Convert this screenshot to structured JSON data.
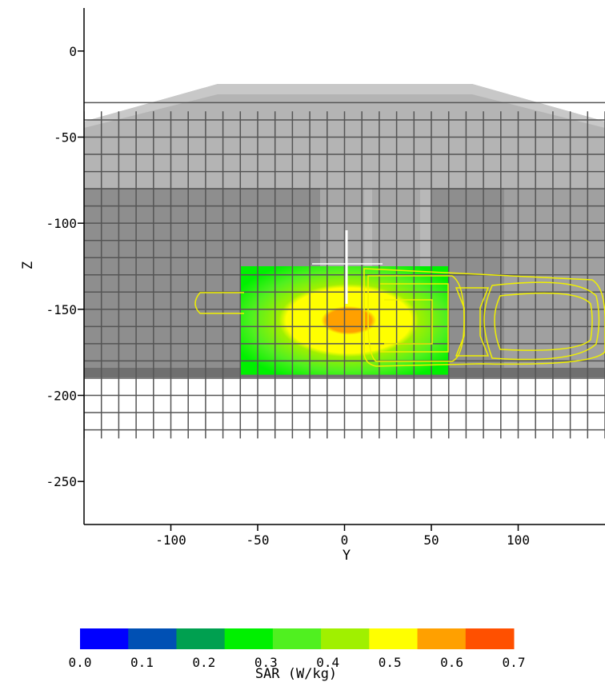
{
  "chart_data": {
    "type": "heatmap",
    "xlabel": "Y",
    "ylabel": "Z",
    "xlim": [
      -150,
      150
    ],
    "ylim": [
      -275,
      25
    ],
    "x_ticks": [
      "-100",
      "-50",
      "0",
      "50",
      "100"
    ],
    "x_tick_values": [
      -100,
      -50,
      0,
      50,
      100
    ],
    "y_ticks": [
      "0",
      "-50",
      "-100",
      "-150",
      "-200",
      "-250"
    ],
    "y_tick_values": [
      0,
      -50,
      -100,
      -150,
      -200,
      -250
    ],
    "sar_scan_area": {
      "y_range": [
        -60,
        60
      ],
      "z_range": [
        -125,
        -188
      ]
    },
    "peak_location": {
      "y": 0,
      "z": -150
    },
    "grid": true,
    "colorbar": {
      "label": "SAR (W/kg)",
      "ticks": [
        "0.0",
        "0.1",
        "0.2",
        "0.3",
        "0.4",
        "0.5",
        "0.6",
        "0.7"
      ],
      "min": 0.0,
      "max": 0.7,
      "colors": [
        "#0000ff",
        "#0050b4",
        "#00a050",
        "#00f000",
        "#50f020",
        "#a0f000",
        "#ffff00",
        "#ffa000",
        "#ff5000"
      ]
    },
    "colors": {
      "phantom_light": "#b4b4b4",
      "phantom_dark": "#8c8c8c",
      "grid_line": "#555555",
      "phone_outline": "#f0f000",
      "probe_line": "#ffffff"
    }
  }
}
